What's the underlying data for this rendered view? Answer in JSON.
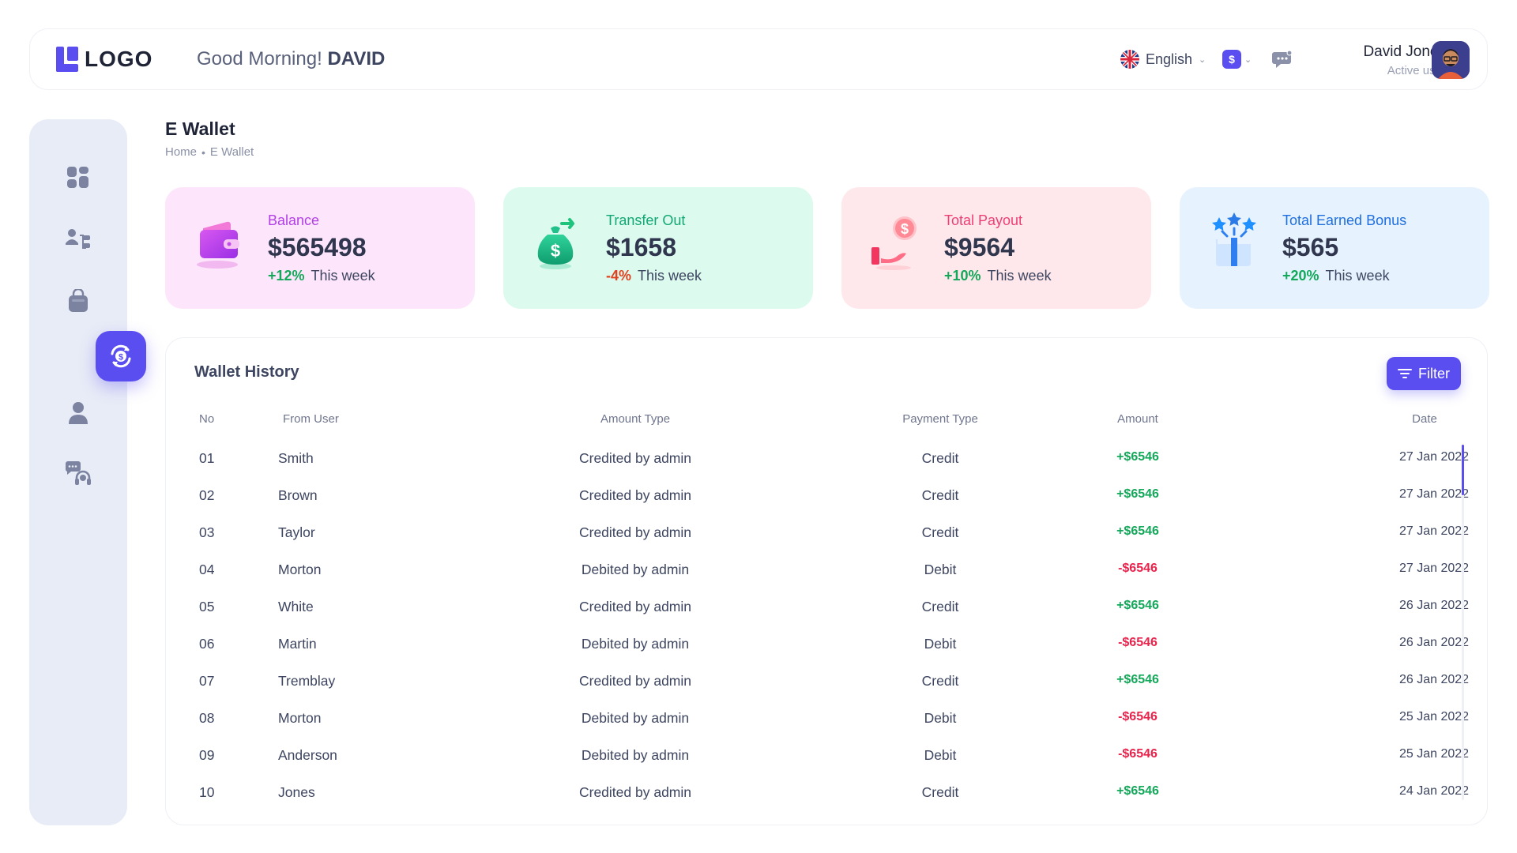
{
  "header": {
    "logo_text": "LOGO",
    "greeting_prefix": "Good Morning!",
    "greeting_name": "DAVID",
    "language": "English",
    "currency_symbol": "$",
    "user_name": "David Jones",
    "user_status": "Active user"
  },
  "page": {
    "title": "E Wallet",
    "breadcrumb": [
      "Home",
      "E Wallet"
    ]
  },
  "sidebar": {
    "items": [
      {
        "icon": "dashboard-icon",
        "active": false
      },
      {
        "icon": "network-icon",
        "active": false
      },
      {
        "icon": "shopping-bag-icon",
        "active": false
      },
      {
        "icon": "wallet-exchange-icon",
        "active": true
      },
      {
        "icon": "user-icon",
        "active": false
      },
      {
        "icon": "support-icon",
        "active": false
      }
    ]
  },
  "cards": [
    {
      "label": "Balance",
      "value": "$565498",
      "delta": "+12%",
      "delta_text": "This week",
      "label_color": "#b23fe6",
      "bg": "#fde6fb"
    },
    {
      "label": "Transfer Out",
      "value": "$1658",
      "delta": "-4%",
      "delta_text": "This week",
      "label_color": "#12a876",
      "bg": "#dcfaee"
    },
    {
      "label": "Total Payout",
      "value": "$9564",
      "delta": "+10%",
      "delta_text": "This week",
      "label_color": "#ee3f75",
      "bg": "#ffe8ec"
    },
    {
      "label": "Total Earned Bonus",
      "value": "$565",
      "delta": "+20%",
      "delta_text": "This week",
      "label_color": "#1f6fe0",
      "bg": "#e6f3ff"
    }
  ],
  "history": {
    "title": "Wallet History",
    "filter_label": "Filter",
    "columns": [
      "No",
      "From User",
      "Amount Type",
      "Payment Type",
      "Amount",
      "Date"
    ],
    "rows": [
      {
        "no": "01",
        "user": "Smith",
        "amount_type": "Credited by admin",
        "payment_type": "Credit",
        "amount": "+$6546",
        "date": "27 Jan 2022"
      },
      {
        "no": "02",
        "user": "Brown",
        "amount_type": "Credited by admin",
        "payment_type": "Credit",
        "amount": "+$6546",
        "date": "27 Jan 2022"
      },
      {
        "no": "03",
        "user": "Taylor",
        "amount_type": "Credited by admin",
        "payment_type": "Credit",
        "amount": "+$6546",
        "date": "27 Jan 2022"
      },
      {
        "no": "04",
        "user": "Morton",
        "amount_type": "Debited by admin",
        "payment_type": "Debit",
        "amount": "-$6546",
        "date": "27 Jan 2022"
      },
      {
        "no": "05",
        "user": "White",
        "amount_type": "Credited by admin",
        "payment_type": "Credit",
        "amount": "+$6546",
        "date": "26 Jan 2022"
      },
      {
        "no": "06",
        "user": "Martin",
        "amount_type": "Debited by admin",
        "payment_type": "Debit",
        "amount": "-$6546",
        "date": "26 Jan 2022"
      },
      {
        "no": "07",
        "user": "Tremblay",
        "amount_type": "Credited by admin",
        "payment_type": "Credit",
        "amount": "+$6546",
        "date": "26 Jan 2022"
      },
      {
        "no": "08",
        "user": "Morton",
        "amount_type": "Debited by admin",
        "payment_type": "Debit",
        "amount": "-$6546",
        "date": "25 Jan 2022"
      },
      {
        "no": "09",
        "user": "Anderson",
        "amount_type": "Debited by admin",
        "payment_type": "Debit",
        "amount": "-$6546",
        "date": "25 Jan 2022"
      },
      {
        "no": "10",
        "user": "Jones",
        "amount_type": "Credited by admin",
        "payment_type": "Credit",
        "amount": "+$6546",
        "date": "24 Jan 2022"
      }
    ]
  },
  "colors": {
    "accent": "#5b4ef0",
    "credit": "#14a85a",
    "debit": "#e8234c"
  }
}
